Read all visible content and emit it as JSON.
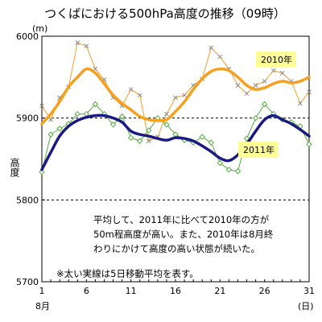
{
  "chart_data": {
    "type": "line",
    "title": "つくばにおける500hPa高度の推移（09時）",
    "yunit": "(m)",
    "ylabel": "高度",
    "xunit": "(日)",
    "month_label": "8月",
    "ylim": [
      5700,
      6000
    ],
    "xlim": [
      1,
      31
    ],
    "yticks": [
      5700,
      5800,
      5900,
      6000
    ],
    "xticks": [
      1,
      6,
      11,
      16,
      21,
      26,
      31
    ],
    "reference_lines": [
      5900,
      5800
    ],
    "x": [
      1,
      2,
      3,
      4,
      5,
      6,
      7,
      8,
      9,
      10,
      11,
      12,
      13,
      14,
      15,
      16,
      17,
      18,
      19,
      20,
      21,
      22,
      23,
      24,
      25,
      26,
      27,
      28,
      29,
      30,
      31
    ],
    "series": [
      {
        "name": "2010年",
        "color": "#f0a030",
        "values": [
          5915,
          5898,
          5925,
          5938,
          5992,
          5988,
          5960,
          5947,
          5925,
          5915,
          5935,
          5928,
          5872,
          5877,
          5905,
          5925,
          5928,
          5940,
          5948,
          5986,
          5975,
          5960,
          5940,
          5930,
          5940,
          5945,
          5958,
          5955,
          5945,
          5918,
          5932
        ]
      },
      {
        "name": "2011年",
        "color": "#55aa44",
        "values": [
          5834,
          5880,
          5887,
          5893,
          5905,
          5905,
          5917,
          5905,
          5892,
          5902,
          5876,
          5872,
          5885,
          5900,
          5892,
          5880,
          5873,
          5870,
          5877,
          5870,
          5845,
          5837,
          5835,
          5875,
          5900,
          5917,
          5905,
          5898,
          5895,
          5890,
          5868
        ]
      }
    ],
    "moving_average": [
      {
        "name": "2010年",
        "color": "#f5a020",
        "values": [
          5893,
          5905,
          5920,
          5938,
          5950,
          5960,
          5955,
          5942,
          5928,
          5918,
          5910,
          5902,
          5898,
          5897,
          5898,
          5908,
          5920,
          5935,
          5948,
          5957,
          5960,
          5958,
          5950,
          5940,
          5935,
          5937,
          5942,
          5945,
          5943,
          5945,
          5950
        ]
      },
      {
        "name": "2011年",
        "color": "#1a1a80",
        "values": [
          5837,
          5858,
          5878,
          5890,
          5897,
          5901,
          5903,
          5903,
          5900,
          5895,
          5884,
          5880,
          5878,
          5875,
          5873,
          5876,
          5875,
          5872,
          5866,
          5859,
          5851,
          5848,
          5855,
          5868,
          5884,
          5898,
          5903,
          5898,
          5893,
          5886,
          5878
        ]
      }
    ],
    "legend_2010": "2010年",
    "legend_2011": "2011年",
    "annotation_lines": [
      "平均して、2011年に比べて2010年の方が",
      "50m程高度が高い。また、2010年は8月終",
      "わりにかけて高度の高い状態が続いた。"
    ],
    "footnote": "※太い実線は5日移動平均を表す。",
    "colors": {
      "legend_bg": "#ffff99",
      "grid": "#000000"
    }
  }
}
